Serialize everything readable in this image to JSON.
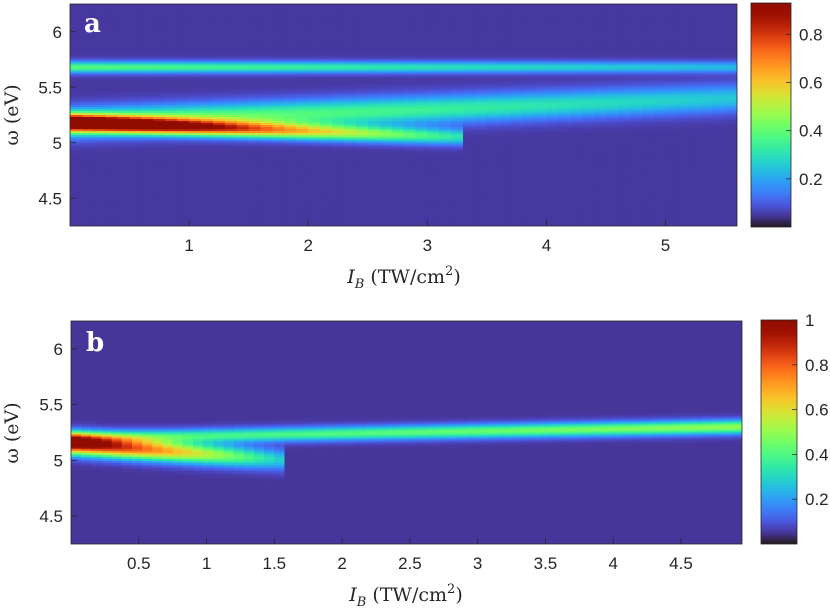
{
  "chart_data": [
    {
      "type": "heatmap",
      "panel_label": "a",
      "xlabel": "I_B (TW/cm^2)",
      "xlabel_text": "I",
      "xlabel_sub": "B",
      "xlabel_unit": "(TW/cm",
      "xlabel_sup": "2",
      "xlabel_close": ")",
      "ylabel": "ω (eV)",
      "xlim": [
        0,
        5.6
      ],
      "ylim": [
        4.25,
        6.25
      ],
      "xticks": [
        1,
        2,
        3,
        4,
        5
      ],
      "xtick_labels": [
        "1",
        "2",
        "3",
        "4",
        "5"
      ],
      "yticks": [
        4.5,
        5,
        5.5,
        6
      ],
      "ytick_labels": [
        "4.5",
        "5",
        "5.5",
        "6"
      ],
      "colorbar": {
        "min": 0,
        "max": 0.93,
        "ticks": [
          0.2,
          0.4,
          0.6,
          0.8
        ],
        "tick_labels": [
          "0.2",
          "0.4",
          "0.6",
          "0.8"
        ],
        "colormap": "turbo"
      },
      "bands": [
        {
          "description": "main peak splitting into lower branch",
          "center_start": 5.18,
          "center_end": 5.05,
          "x_end": 3.3,
          "peak_start": 0.92,
          "peak_end": 0.25,
          "width": 0.07
        },
        {
          "description": "upper branch rising",
          "center_start": 5.18,
          "center_end": 5.4,
          "x_end": 5.6,
          "peak_start": 0.4,
          "peak_end": 0.2,
          "width": 0.12
        },
        {
          "description": "constant upper band",
          "center_start": 5.68,
          "center_end": 5.68,
          "x_end": 5.6,
          "peak_start": 0.34,
          "peak_end": 0.18,
          "width": 0.05
        }
      ],
      "background": 0.05
    },
    {
      "type": "heatmap",
      "panel_label": "b",
      "xlabel": "I_B (TW/cm^2)",
      "xlabel_text": "I",
      "xlabel_sub": "B",
      "xlabel_unit": "(TW/cm",
      "xlabel_sup": "2",
      "xlabel_close": ")",
      "ylabel": "ω (eV)",
      "xlim": [
        0,
        4.95
      ],
      "ylim": [
        4.25,
        6.25
      ],
      "xticks": [
        0.5,
        1,
        1.5,
        2,
        2.5,
        3,
        3.5,
        4,
        4.5
      ],
      "xtick_labels": [
        "0.5",
        "1",
        "1.5",
        "2",
        "2.5",
        "3",
        "3.5",
        "4",
        "4.5"
      ],
      "yticks": [
        4.5,
        5,
        5.5,
        6
      ],
      "ytick_labels": [
        "4.5",
        "5",
        "5.5",
        "6"
      ],
      "colorbar": {
        "min": 0,
        "max": 1.0,
        "ticks": [
          0.2,
          0.4,
          0.6,
          0.8,
          1
        ],
        "tick_labels": [
          "0.2",
          "0.4",
          "0.6",
          "0.8",
          "1"
        ],
        "colormap": "turbo"
      },
      "bands": [
        {
          "description": "main peak decaying",
          "center_start": 5.15,
          "center_end": 5.0,
          "x_end": 1.6,
          "peak_start": 1.0,
          "peak_end": 0.2,
          "width": 0.09
        },
        {
          "description": "upper band",
          "center_start": 5.2,
          "center_end": 5.3,
          "x_end": 4.95,
          "peak_start": 0.3,
          "peak_end": 0.45,
          "width": 0.06
        }
      ],
      "background": 0.05
    }
  ]
}
